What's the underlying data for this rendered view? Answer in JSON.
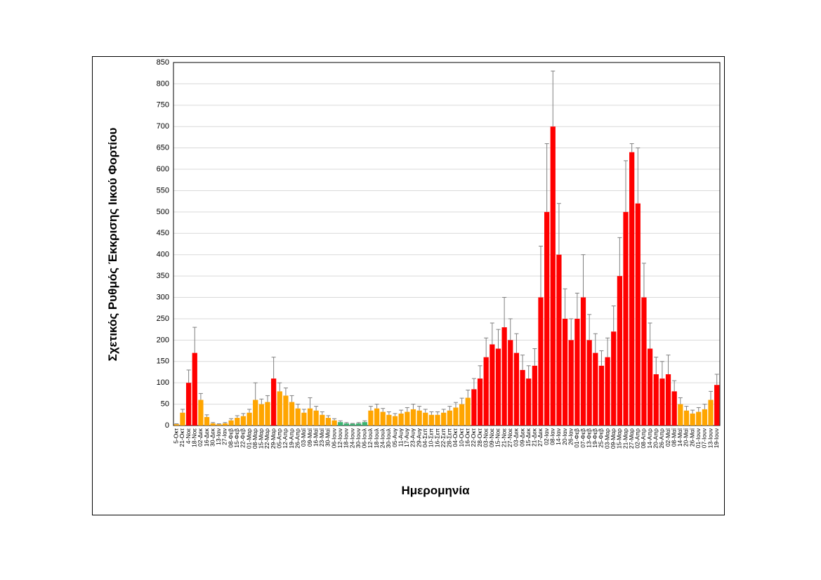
{
  "chart_data": {
    "type": "bar",
    "x_label": "Ημερομηνία",
    "y_label": "Σχετικός Ρυθμός Έκκρισης Ιικού Φορτίου",
    "categories": [
      "5-Οκτ",
      "21-Οκτ",
      "4-Νοε",
      "18-Νοε",
      "02-Δεκ",
      "16-Δεκ",
      "30-Δεκ",
      "13-Ιαν",
      "27-Ιαν",
      "08-Φεβ",
      "15-Φεβ",
      "22-Φεβ",
      "01-Μαρ",
      "08-Μαρ",
      "15-Μαρ",
      "22-Μαρ",
      "29-Μαρ",
      "05-Απρ",
      "12-Απρ",
      "19-Απρ",
      "26-Απρ",
      "03-Μαϊ",
      "09-Μαϊ",
      "16-Μαϊ",
      "23-Μαϊ",
      "30-Μαϊ",
      "06-Ιουν",
      "12-Ιουν",
      "18-Ιουν",
      "24-Ιουν",
      "30-Ιουν",
      "06-Ιουλ",
      "12-Ιουλ",
      "18-Ιουλ",
      "24-Ιουλ",
      "30-Ιουλ",
      "05-Αυγ",
      "11-Αυγ",
      "17-Αυγ",
      "23-Αυγ",
      "29-Αυγ",
      "04-Σεπ",
      "10-Σεπ",
      "16-Σεπ",
      "22-Σεπ",
      "28-Σεπ",
      "04-Οκτ",
      "10-Οκτ",
      "16-Οκτ",
      "22-Οκτ",
      "28-Οκτ",
      "03-Νοε",
      "09-Νοε",
      "15-Νοε",
      "21-Νοε",
      "27-Νοε",
      "03-Δεκ",
      "09-Δεκ",
      "15-Δεκ",
      "21-Δεκ",
      "27-Δεκ",
      "02-Ιαν",
      "08-Ιαν",
      "14-Ιαν",
      "20-Ιαν",
      "26-Ιαν",
      "01-Φεβ",
      "07-Φεβ",
      "13-Φεβ",
      "19-Φεβ",
      "25-Φεβ",
      "03-Μαρ",
      "09-Μαρ",
      "15-Μαρ",
      "21-Μαρ",
      "27-Μαρ",
      "02-Απρ",
      "08-Απρ",
      "14-Απρ",
      "20-Απρ",
      "26-Απρ",
      "02-Μαϊ",
      "08-Μαϊ",
      "14-Μαϊ",
      "20-Μαϊ",
      "26-Μαϊ",
      "01-Ιουν",
      "07-Ιουν",
      "13-Ιουν",
      "19-Ιουν"
    ],
    "values": [
      3,
      30,
      100,
      170,
      60,
      20,
      5,
      3,
      5,
      12,
      18,
      22,
      30,
      60,
      50,
      55,
      110,
      80,
      70,
      55,
      40,
      30,
      40,
      35,
      25,
      18,
      12,
      8,
      5,
      4,
      5,
      8,
      35,
      40,
      32,
      25,
      22,
      28,
      32,
      38,
      35,
      30,
      25,
      25,
      30,
      35,
      42,
      50,
      65,
      85,
      110,
      160,
      190,
      180,
      230,
      200,
      170,
      130,
      110,
      140,
      300,
      500,
      700,
      400,
      250,
      200,
      250,
      300,
      200,
      170,
      140,
      160,
      220,
      350,
      500,
      640,
      520,
      300,
      180,
      120,
      110,
      120,
      80,
      50,
      35,
      28,
      32,
      38,
      60,
      95
    ],
    "errors": [
      1,
      8,
      30,
      60,
      15,
      5,
      2,
      1,
      2,
      4,
      5,
      6,
      8,
      40,
      12,
      15,
      50,
      20,
      18,
      15,
      10,
      8,
      25,
      10,
      7,
      5,
      4,
      3,
      2,
      1,
      2,
      3,
      10,
      10,
      8,
      7,
      6,
      8,
      10,
      12,
      10,
      8,
      7,
      7,
      8,
      10,
      12,
      14,
      18,
      25,
      30,
      45,
      50,
      45,
      70,
      50,
      45,
      35,
      30,
      40,
      120,
      160,
      130,
      120,
      70,
      50,
      60,
      100,
      60,
      45,
      35,
      45,
      60,
      90,
      120,
      20,
      130,
      80,
      60,
      40,
      40,
      45,
      25,
      15,
      10,
      8,
      10,
      12,
      20,
      25
    ],
    "colors": [
      "#ffa500",
      "#ffa500",
      "#ff0000",
      "#ff0000",
      "#ffa500",
      "#ffa500",
      "#ffa500",
      "#ffa500",
      "#ffa500",
      "#ffa500",
      "#ffa500",
      "#ffa500",
      "#ffa500",
      "#ffa500",
      "#ffa500",
      "#ffa500",
      "#ff0000",
      "#ffa500",
      "#ffa500",
      "#ffa500",
      "#ffa500",
      "#ffa500",
      "#ffa500",
      "#ffa500",
      "#ffa500",
      "#ffa500",
      "#ffa500",
      "#3cb371",
      "#3cb371",
      "#3cb371",
      "#3cb371",
      "#3cb371",
      "#ffa500",
      "#ffa500",
      "#ffa500",
      "#ffa500",
      "#ffa500",
      "#ffa500",
      "#ffa500",
      "#ffa500",
      "#ffa500",
      "#ffa500",
      "#ffa500",
      "#ffa500",
      "#ffa500",
      "#ffa500",
      "#ffa500",
      "#ffa500",
      "#ffa500",
      "#ff0000",
      "#ff0000",
      "#ff0000",
      "#ff0000",
      "#ff0000",
      "#ff0000",
      "#ff0000",
      "#ff0000",
      "#ff0000",
      "#ff0000",
      "#ff0000",
      "#ff0000",
      "#ff0000",
      "#ff0000",
      "#ff0000",
      "#ff0000",
      "#ff0000",
      "#ff0000",
      "#ff0000",
      "#ff0000",
      "#ff0000",
      "#ff0000",
      "#ff0000",
      "#ff0000",
      "#ff0000",
      "#ff0000",
      "#ff0000",
      "#ff0000",
      "#ff0000",
      "#ff0000",
      "#ff0000",
      "#ff0000",
      "#ff0000",
      "#ff0000",
      "#ffa500",
      "#ffa500",
      "#ffa500",
      "#ffa500",
      "#ffa500",
      "#ffa500",
      "#ff0000"
    ],
    "error_color": "#808080",
    "ylim": [
      0,
      850
    ],
    "yticks": [
      0,
      50,
      100,
      150,
      200,
      250,
      300,
      350,
      400,
      450,
      500,
      550,
      600,
      650,
      700,
      750,
      800,
      850
    ],
    "grid": true
  }
}
